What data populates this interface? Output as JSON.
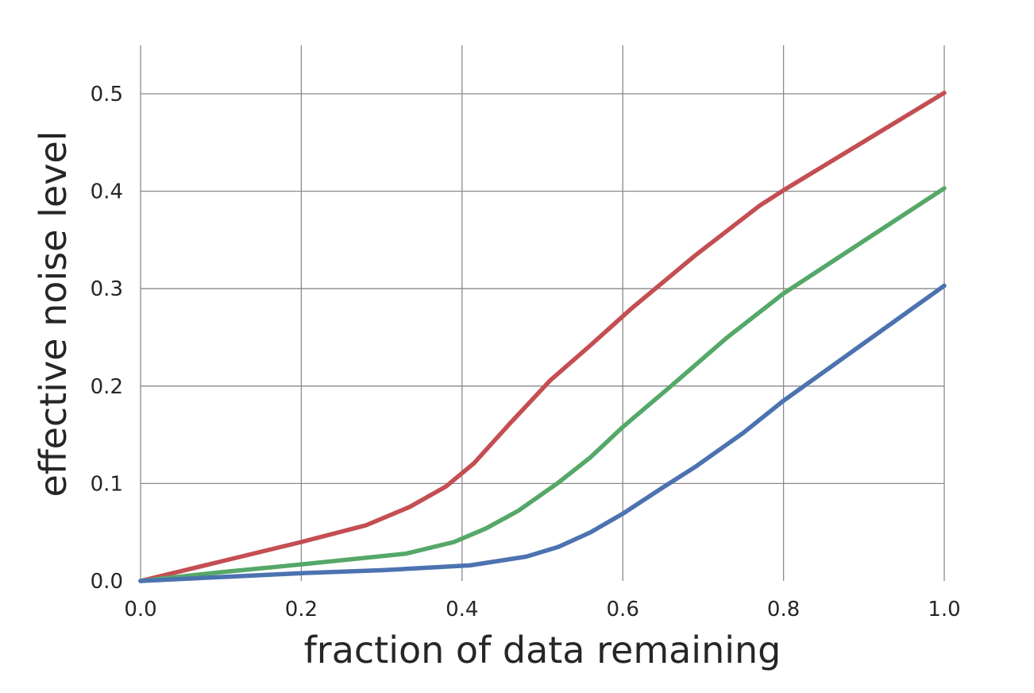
{
  "chart_data": {
    "type": "line",
    "title": "",
    "xlabel": "fraction of data remaining",
    "ylabel": "effective noise level",
    "xlim": [
      0.0,
      1.0
    ],
    "ylim": [
      0.0,
      0.55
    ],
    "x_ticks": [
      "0.0",
      "0.2",
      "0.4",
      "0.6",
      "0.8",
      "1.0"
    ],
    "y_ticks": [
      "0.0",
      "0.1",
      "0.2",
      "0.3",
      "0.4",
      "0.5"
    ],
    "grid": true,
    "legend": false,
    "series": [
      {
        "color": "#c44e52",
        "x": [
          0.0,
          0.1,
          0.2,
          0.28,
          0.335,
          0.38,
          0.415,
          0.46,
          0.51,
          0.56,
          0.61,
          0.69,
          0.77,
          0.8,
          0.9,
          1.0
        ],
        "y": [
          0.0,
          0.02,
          0.04,
          0.057,
          0.076,
          0.097,
          0.121,
          0.162,
          0.206,
          0.242,
          0.279,
          0.334,
          0.385,
          0.401,
          0.451,
          0.501
        ]
      },
      {
        "color": "#55a868",
        "x": [
          0.0,
          0.1,
          0.2,
          0.33,
          0.39,
          0.43,
          0.47,
          0.52,
          0.56,
          0.6,
          0.66,
          0.73,
          0.8,
          0.9,
          1.0
        ],
        "y": [
          0.0,
          0.009,
          0.017,
          0.028,
          0.04,
          0.054,
          0.072,
          0.101,
          0.127,
          0.158,
          0.2,
          0.25,
          0.295,
          0.349,
          0.403
        ]
      },
      {
        "color": "#4c72b0",
        "x": [
          0.0,
          0.1,
          0.2,
          0.3,
          0.41,
          0.48,
          0.52,
          0.56,
          0.6,
          0.65,
          0.69,
          0.75,
          0.8,
          0.9,
          1.0
        ],
        "y": [
          0.0,
          0.004,
          0.008,
          0.011,
          0.016,
          0.025,
          0.035,
          0.05,
          0.069,
          0.096,
          0.117,
          0.152,
          0.185,
          0.244,
          0.303
        ]
      }
    ]
  }
}
